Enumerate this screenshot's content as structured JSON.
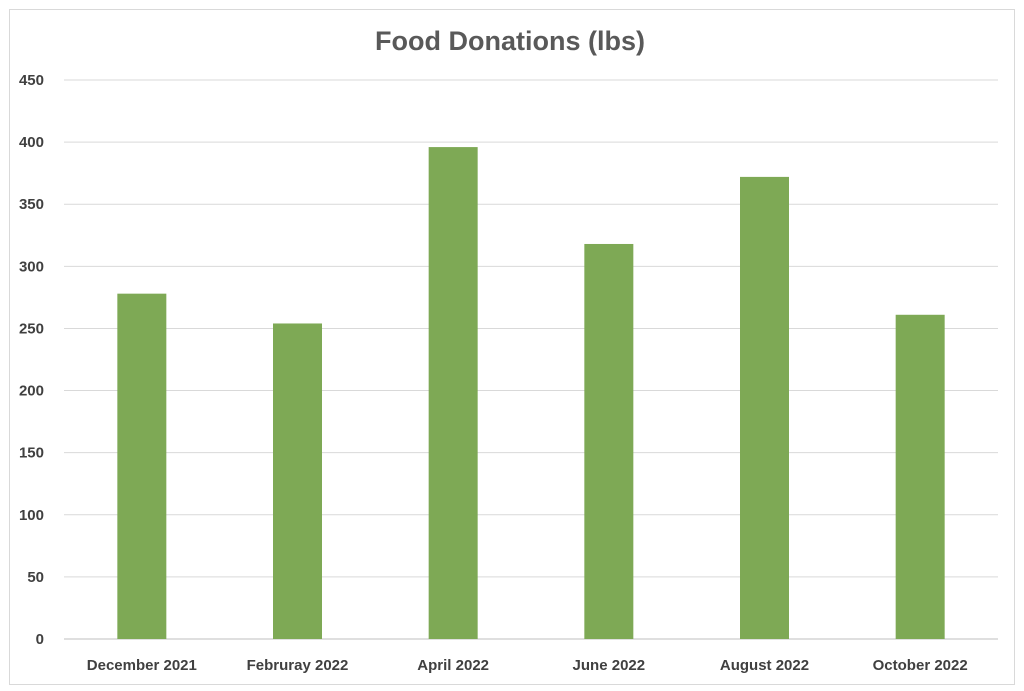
{
  "chart_data": {
    "type": "bar",
    "title": "Food Donations (lbs)",
    "xlabel": "",
    "ylabel": "",
    "categories": [
      "December 2021",
      "Februray 2022",
      "April 2022",
      "June 2022",
      "August 2022",
      "October 2022"
    ],
    "values": [
      278,
      254,
      396,
      318,
      372,
      261
    ],
    "ylim": [
      0,
      450
    ],
    "yticks": [
      0,
      50,
      100,
      150,
      200,
      250,
      300,
      350,
      400,
      450
    ],
    "grid": true,
    "legend": "none",
    "colors": {
      "bar": "#7ea955",
      "grid": "#d9d9d9",
      "axis": "#bfbfbf",
      "title": "#595959",
      "ticks": "#404040"
    }
  }
}
